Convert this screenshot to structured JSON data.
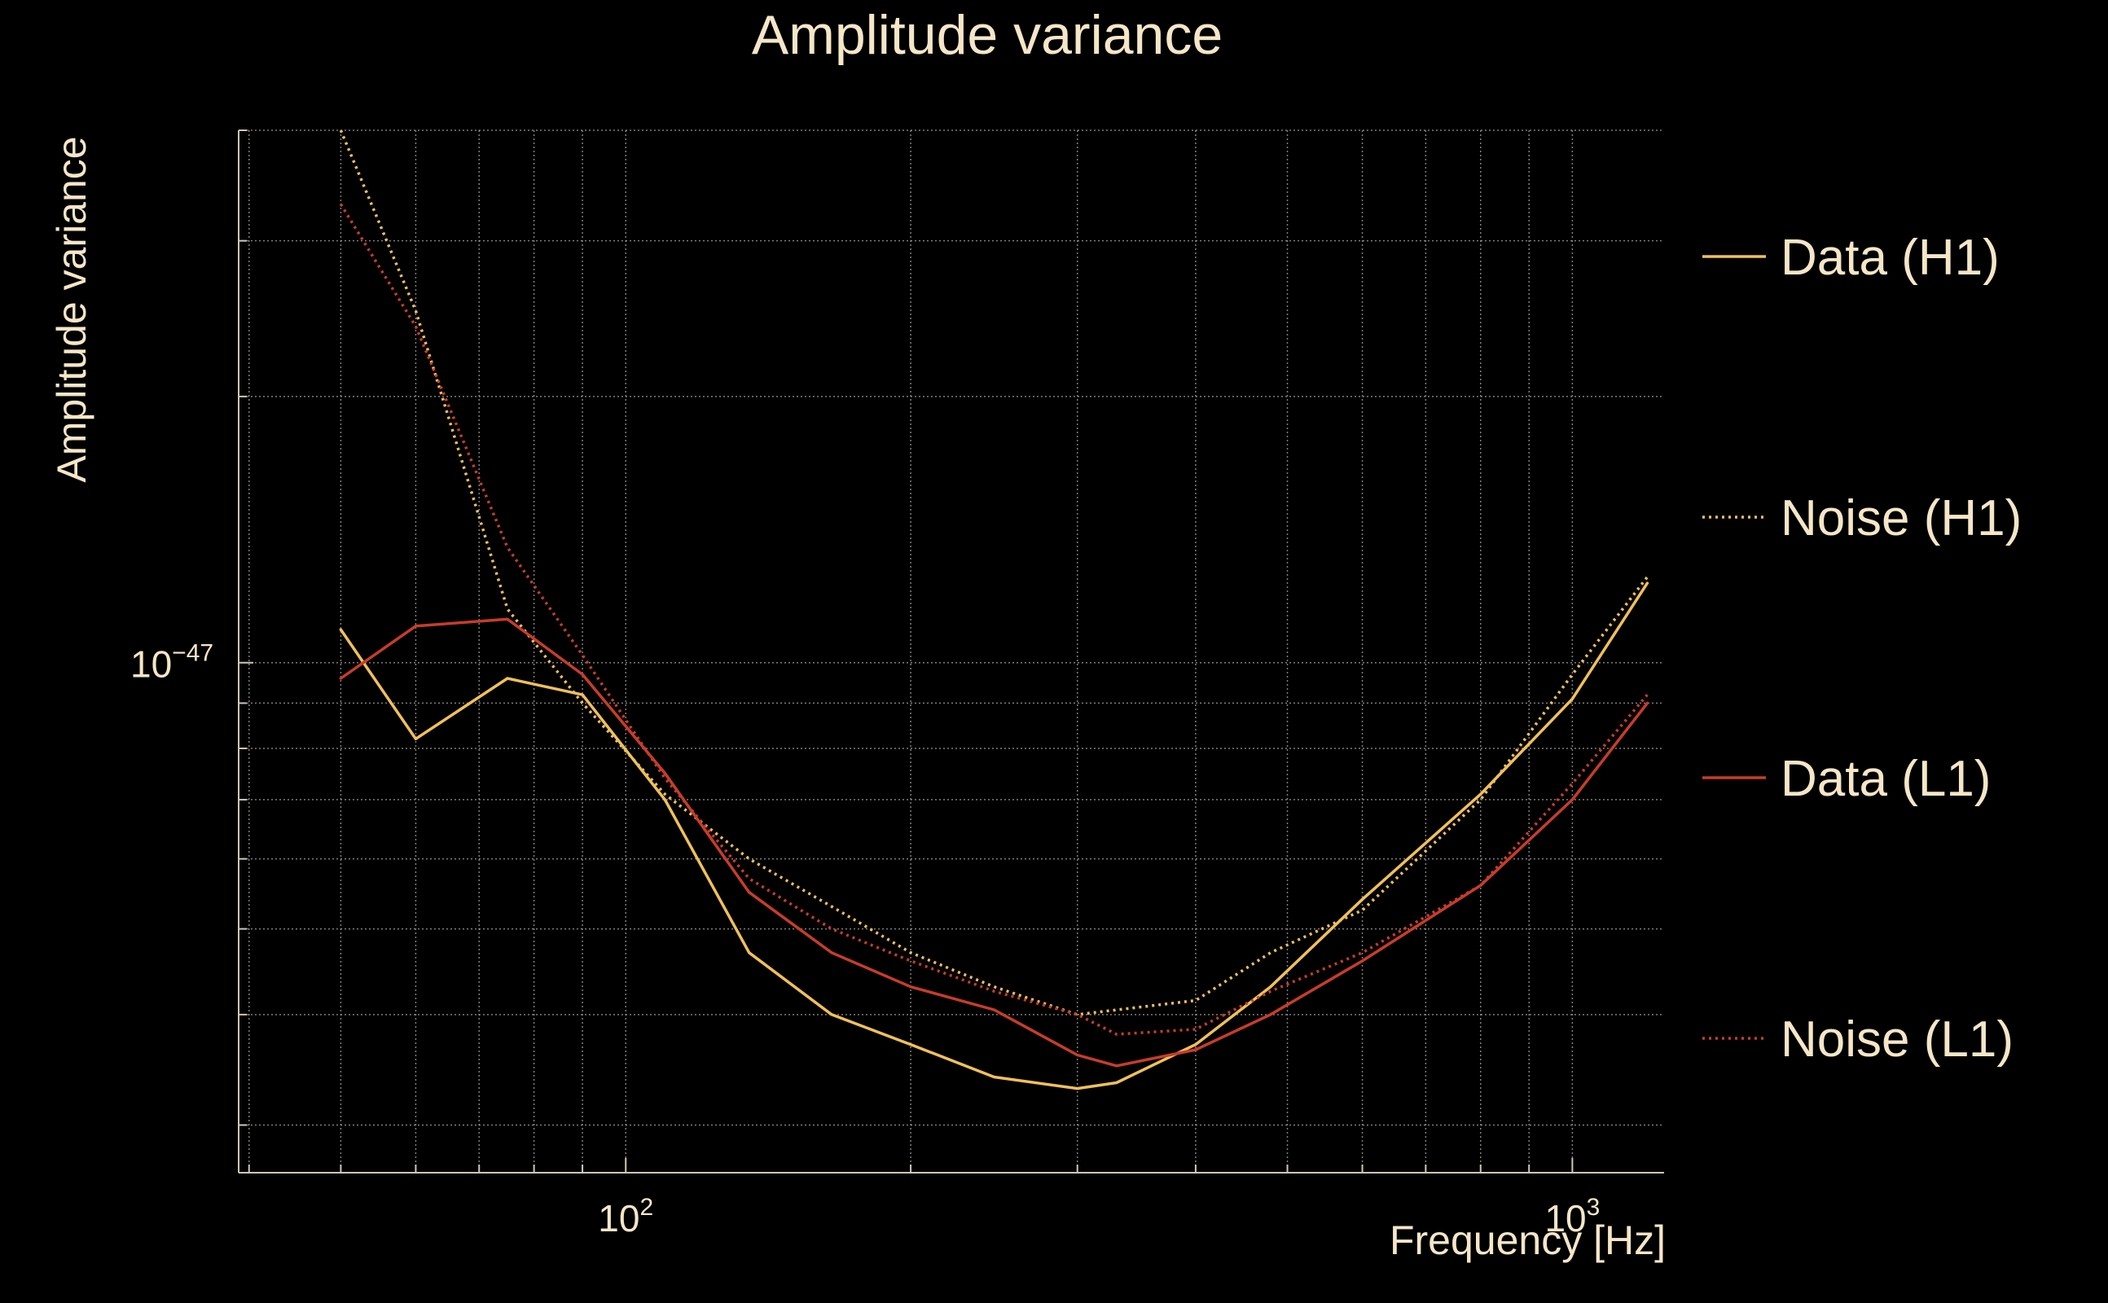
{
  "chart_data": {
    "type": "line",
    "title": "Amplitude variance",
    "xlabel": "Frequency [Hz]",
    "ylabel": "Amplitude variance",
    "xscale": "log",
    "yscale": "log",
    "xlim": [
      39,
      1250
    ],
    "ylim": [
      2.65e-48,
      4e-47
    ],
    "x_ticks": [
      {
        "value": 100,
        "base": "10",
        "exp": "2"
      },
      {
        "value": 1000,
        "base": "10",
        "exp": "3"
      }
    ],
    "y_ticks": [
      {
        "value": 1e-47,
        "base": "10",
        "exp": "−47"
      }
    ],
    "grid": true,
    "legend_position": "right",
    "colors": {
      "background": "#000000",
      "text": "#f5e6c8",
      "grid": "#a8a8a8",
      "axis": "#cfc7b5",
      "h1": "#f0c05a",
      "l1": "#c83c2a"
    },
    "series": [
      {
        "name": "Data (H1)",
        "color": "#f0c05a",
        "style": "solid",
        "x": [
          50,
          60,
          75,
          90,
          110,
          135,
          165,
          200,
          245,
          300,
          330,
          400,
          480,
          600,
          800,
          1000,
          1200
        ],
        "y": [
          1.09e-47,
          8.2e-48,
          9.6e-48,
          9.2e-48,
          7e-48,
          4.7e-48,
          4e-48,
          3.7e-48,
          3.4e-48,
          3.3e-48,
          3.35e-48,
          3.7e-48,
          4.3e-48,
          5.4e-48,
          7.1e-48,
          9.1e-48,
          1.23e-47
        ]
      },
      {
        "name": "Noise (H1)",
        "color": "#f0c05a",
        "style": "dotted",
        "x": [
          50,
          60,
          75,
          90,
          110,
          135,
          165,
          200,
          245,
          300,
          400,
          480,
          600,
          800,
          1000,
          1200
        ],
        "y": [
          4e-47,
          2.5e-47,
          1.15e-47,
          9e-48,
          7.1e-48,
          6e-48,
          5.3e-48,
          4.7e-48,
          4.3e-48,
          4e-48,
          4.15e-48,
          4.7e-48,
          5.25e-48,
          7e-48,
          9.7e-48,
          1.25e-47
        ]
      },
      {
        "name": "Data (L1)",
        "color": "#c83c2a",
        "style": "solid",
        "x": [
          50,
          60,
          75,
          90,
          110,
          135,
          165,
          200,
          245,
          300,
          330,
          400,
          480,
          600,
          800,
          1000,
          1200
        ],
        "y": [
          9.6e-48,
          1.1e-47,
          1.12e-47,
          9.7e-48,
          7.5e-48,
          5.5e-48,
          4.7e-48,
          4.3e-48,
          4.05e-48,
          3.6e-48,
          3.5e-48,
          3.65e-48,
          4e-48,
          4.6e-48,
          5.6e-48,
          7e-48,
          9e-48
        ]
      },
      {
        "name": "Noise (L1)",
        "color": "#c83c2a",
        "style": "dotted",
        "x": [
          50,
          60,
          75,
          90,
          110,
          135,
          165,
          200,
          245,
          300,
          330,
          400,
          480,
          600,
          800,
          1000,
          1200
        ],
        "y": [
          3.3e-47,
          2.4e-47,
          1.35e-47,
          1.02e-47,
          7.4e-48,
          5.7e-48,
          5e-48,
          4.6e-48,
          4.25e-48,
          4e-48,
          3.8e-48,
          3.85e-48,
          4.25e-48,
          4.7e-48,
          5.6e-48,
          7.3e-48,
          9.2e-48
        ]
      }
    ]
  }
}
